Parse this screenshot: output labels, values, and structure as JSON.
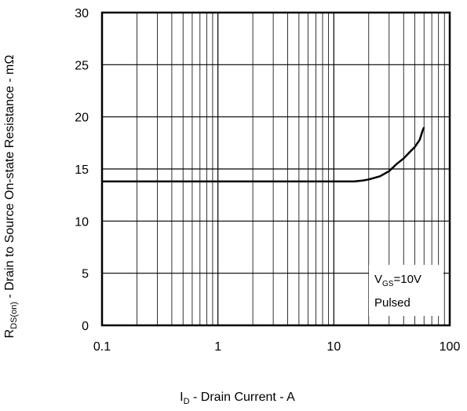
{
  "chart_data": {
    "type": "line",
    "xscale": "log",
    "xlim": [
      0.1,
      100
    ],
    "ylim": [
      0,
      30
    ],
    "xticks": [
      0.1,
      1,
      10,
      100
    ],
    "xtick_labels": [
      "0.1",
      "1",
      "10",
      "100"
    ],
    "yticks": [
      0,
      5,
      10,
      15,
      20,
      25,
      30
    ],
    "ytick_labels": [
      "0",
      "5",
      "10",
      "15",
      "20",
      "25",
      "30"
    ],
    "grid": true,
    "xlabel": {
      "main": "I",
      "sub": "D",
      "rest": " - Drain Current - A"
    },
    "ylabel": {
      "main": "R",
      "sub": "DS(on)",
      "rest": " - Drain to Source On-state Resistance - mΩ"
    },
    "annotation": {
      "vgs_main": "V",
      "vgs_sub": "GS",
      "vgs_value": "=10V",
      "pulsed": "Pulsed"
    },
    "series": [
      {
        "x": [
          0.1,
          1,
          5,
          10,
          15,
          18,
          20,
          25,
          30,
          35,
          40,
          45,
          50,
          55,
          58,
          60
        ],
        "y": [
          13.8,
          13.8,
          13.8,
          13.8,
          13.8,
          13.9,
          14.0,
          14.3,
          14.8,
          15.5,
          16.0,
          16.6,
          17.1,
          17.8,
          18.6,
          19.0
        ],
        "color": "#000000"
      }
    ]
  }
}
